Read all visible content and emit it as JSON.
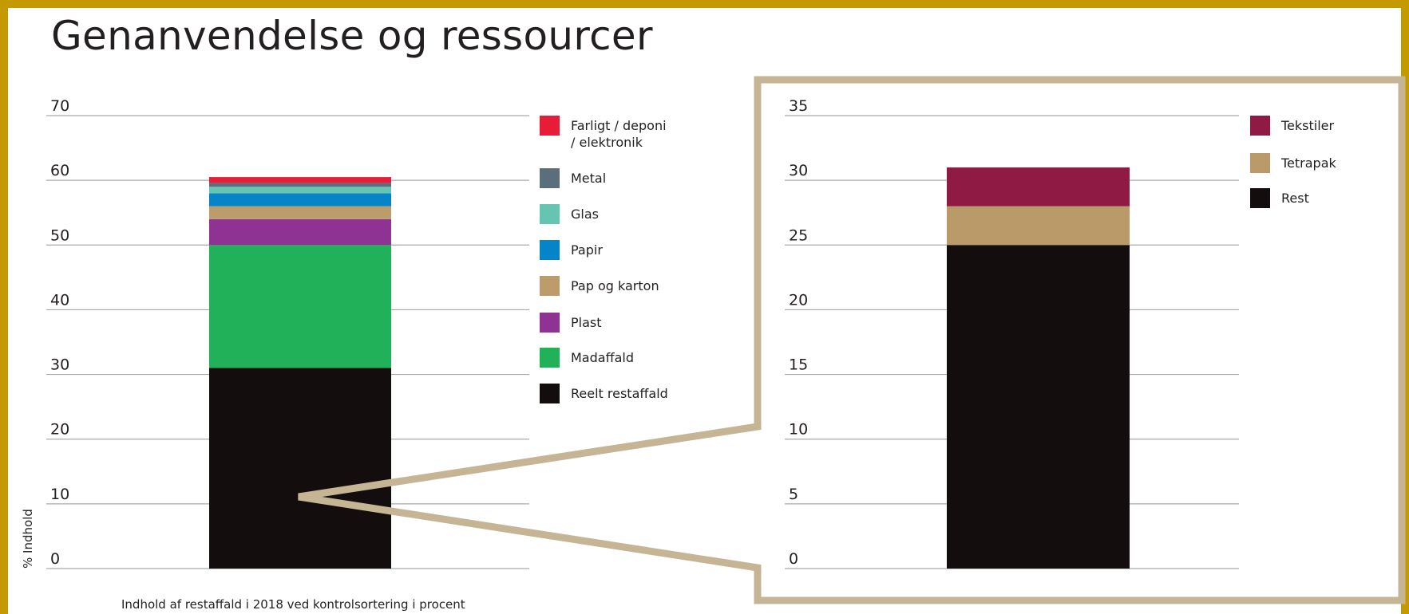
{
  "title": "Genanvendelse og ressourcer",
  "colors": {
    "border": "#c49a00",
    "callout": "#c5b595",
    "grid": "#a7a9ac",
    "text": "#231f20"
  },
  "chart_data": [
    {
      "type": "bar",
      "stacked": true,
      "ylabel": "% Indhold",
      "caption": "Indhold af restaffald i 2018 ved kontrolsortering i procent",
      "ylim": [
        0,
        70
      ],
      "yticks": [
        0,
        10,
        20,
        30,
        40,
        50,
        60,
        70
      ],
      "grid": true,
      "legend_position": "right",
      "series": [
        {
          "name": "Reelt restaffald",
          "value": 31,
          "color": "#130d0e"
        },
        {
          "name": "Madaffald",
          "value": 19,
          "color": "#21b259"
        },
        {
          "name": "Plast",
          "value": 4,
          "color": "#8e3394"
        },
        {
          "name": "Pap og karton",
          "value": 2,
          "color": "#bd9c6b"
        },
        {
          "name": "Papir",
          "value": 2,
          "color": "#0585c8"
        },
        {
          "name": "Glas",
          "value": 1,
          "color": "#65c4b2"
        },
        {
          "name": "Metal",
          "value": 0.6,
          "color": "#5a6e7c"
        },
        {
          "name": "Farligt / deponi / elektronik",
          "value": 0.9,
          "color": "#e91c38"
        }
      ],
      "legend_order": [
        "Farligt / deponi / elektronik",
        "Metal",
        "Glas",
        "Papir",
        "Pap og karton",
        "Plast",
        "Madaffald",
        "Reelt restaffald"
      ]
    },
    {
      "type": "bar",
      "stacked": true,
      "ylim": [
        0,
        35
      ],
      "yticks": [
        0,
        5,
        10,
        15,
        20,
        25,
        30,
        35
      ],
      "grid": true,
      "legend_position": "right",
      "series": [
        {
          "name": "Rest",
          "value": 25,
          "color": "#130d0e"
        },
        {
          "name": "Tetrapak",
          "value": 3,
          "color": "#bb9a6a"
        },
        {
          "name": "Tekstiler",
          "value": 3,
          "color": "#8f1a44"
        }
      ],
      "legend_order": [
        "Tekstiler",
        "Tetrapak",
        "Rest"
      ]
    }
  ]
}
